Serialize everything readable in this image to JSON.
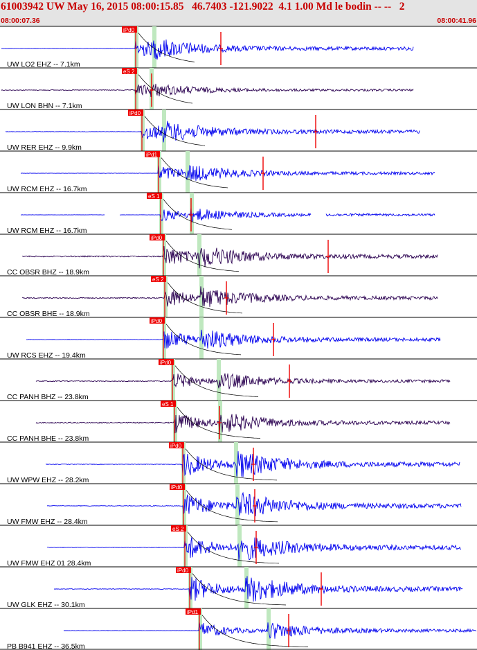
{
  "header": {
    "title": "61003942 UW May 16, 2015 08:00:15.85   46.7403 -121.9022  4.1 1.00 Md le bodin -- --   2",
    "time_start": "08:00:07.36",
    "time_end": "08:00:41.96"
  },
  "colors": {
    "header_bg": "#e4e4e4",
    "title": "#c80000",
    "trace": "#0000ee",
    "dark_trace": "#2a0050",
    "pick": "#ee0000",
    "window": "#bfe8bf"
  },
  "traces": [
    {
      "label": "UW LO2 EHZ -- 7.1km",
      "pick": "iPd0",
      "kind": "blue"
    },
    {
      "label": "UW LON BHN -- 7.1km",
      "pick": "eS 2",
      "kind": "dark"
    },
    {
      "label": "UW RER EHZ -- 9.9km",
      "pick": "iPd0",
      "kind": "blue"
    },
    {
      "label": "UW RCM EHZ -- 16.7km",
      "pick": "iPd1",
      "kind": "blue"
    },
    {
      "label": "UW RCM EHZ -- 16.7km",
      "pick": "eS 1",
      "kind": "blue"
    },
    {
      "label": "CC OBSR BHZ -- 18.9km",
      "pick": "iPd0",
      "kind": "dark"
    },
    {
      "label": "CC OBSR BHE -- 18.9km",
      "pick": "eS 2",
      "kind": "dark"
    },
    {
      "label": "UW RCS EHZ -- 19.4km",
      "pick": "iPd0",
      "kind": "blue"
    },
    {
      "label": "CC PANH BHZ -- 23.8km",
      "pick": "iPd0",
      "kind": "dark"
    },
    {
      "label": "CC PANH BHE -- 23.8km",
      "pick": "eS 1",
      "kind": "dark"
    },
    {
      "label": "UW WPW EHZ -- 28.2km",
      "pick": "iPd0",
      "kind": "blue"
    },
    {
      "label": "UW FMW EHZ -- 28.4km",
      "pick": "iPd0",
      "kind": "blue"
    },
    {
      "label": "UW FMW EHZ 01 28.4km",
      "pick": "eS 2",
      "kind": "blue"
    },
    {
      "label": "UW GLK EHZ -- 30.1km",
      "pick": "iPd0",
      "kind": "blue"
    },
    {
      "label": "PB B941 EHZ -- 36.5km",
      "pick": "iPd1",
      "kind": "blue"
    }
  ]
}
